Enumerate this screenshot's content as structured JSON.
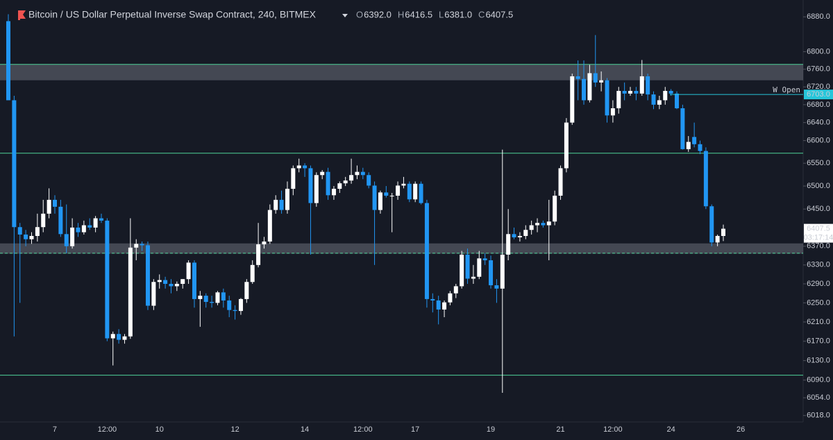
{
  "header": {
    "symbol": "Bitcoin / US Dollar Perpetual Inverse Swap Contract, 240, BITMEX",
    "ohlc": [
      {
        "key": "O",
        "value": "6392.0"
      },
      {
        "key": "H",
        "value": "6416.5"
      },
      {
        "key": "L",
        "value": "6381.0"
      },
      {
        "key": "C",
        "value": "6407.5"
      }
    ]
  },
  "chart_data": {
    "type": "candlestick",
    "log_scale": true,
    "ylim": [
      6005,
      6919
    ],
    "yticks": [
      {
        "value": 6880,
        "label": "6880.0"
      },
      {
        "value": 6800,
        "label": "6800.0"
      },
      {
        "value": 6760,
        "label": "6760.0"
      },
      {
        "value": 6720,
        "label": "6720.0"
      },
      {
        "value": 6680,
        "label": "6680.0"
      },
      {
        "value": 6640,
        "label": "6640.0"
      },
      {
        "value": 6600,
        "label": "6600.0"
      },
      {
        "value": 6550,
        "label": "6550.0"
      },
      {
        "value": 6500,
        "label": "6500.0"
      },
      {
        "value": 6450,
        "label": "6450.0"
      },
      {
        "value": 6370,
        "label": "6370.0"
      },
      {
        "value": 6330,
        "label": "6330.0"
      },
      {
        "value": 6290,
        "label": "6290.0"
      },
      {
        "value": 6250,
        "label": "6250.0"
      },
      {
        "value": 6210,
        "label": "6210.0"
      },
      {
        "value": 6170,
        "label": "6170.0"
      },
      {
        "value": 6130,
        "label": "6130.0"
      },
      {
        "value": 6090,
        "label": "6090.0"
      },
      {
        "value": 6054,
        "label": "6054.0"
      },
      {
        "value": 6018,
        "label": "6018.0"
      }
    ],
    "up_color": "#ffffff",
    "down_color": "#2196f3",
    "categories": [
      null,
      null,
      null,
      null,
      null,
      null,
      null,
      null,
      "7",
      null,
      null,
      null,
      null,
      null,
      null,
      null,
      null,
      "12:00",
      null,
      null,
      null,
      null,
      null,
      null,
      null,
      null,
      "10",
      null,
      null,
      null,
      null,
      null,
      null,
      null,
      null,
      null,
      null,
      null,
      null,
      "12",
      null,
      null,
      null,
      null,
      null,
      null,
      null,
      null,
      null,
      null,
      null,
      "14",
      null,
      null,
      null,
      null,
      null,
      null,
      null,
      null,
      null,
      "12:00",
      null,
      null,
      null,
      null,
      null,
      null,
      null,
      null,
      "17",
      null,
      null,
      null,
      null,
      null,
      null,
      null,
      null,
      null,
      null,
      null,
      null,
      "19",
      null,
      null,
      null,
      null,
      null,
      null,
      null,
      null,
      null,
      null,
      null,
      "21",
      null,
      null,
      null,
      null,
      null,
      null,
      null,
      null,
      "12:00",
      null,
      null,
      null,
      null,
      null,
      null,
      null,
      null,
      null,
      "24",
      null,
      null,
      null,
      null,
      null,
      null,
      null,
      null,
      null,
      null,
      null,
      "26"
    ],
    "ohlc": [
      [
        6870,
        6886,
        6690,
        6690
      ],
      [
        6690,
        6700,
        6180,
        6411
      ],
      [
        6411,
        6420,
        6250,
        6395
      ],
      [
        6395,
        6405,
        6370,
        6385
      ],
      [
        6385,
        6400,
        6375,
        6392
      ],
      [
        6392,
        6440,
        6380,
        6411
      ],
      [
        6411,
        6470,
        6400,
        6440
      ],
      [
        6440,
        6495,
        6430,
        6470
      ],
      [
        6470,
        6480,
        6440,
        6455
      ],
      [
        6455,
        6470,
        6390,
        6396
      ],
      [
        6396,
        6460,
        6355,
        6370
      ],
      [
        6370,
        6430,
        6365,
        6410
      ],
      [
        6410,
        6420,
        6390,
        6400
      ],
      [
        6400,
        6425,
        6395,
        6415
      ],
      [
        6415,
        6430,
        6405,
        6410
      ],
      [
        6410,
        6435,
        6400,
        6430
      ],
      [
        6430,
        6440,
        6420,
        6425
      ],
      [
        6425,
        6430,
        6170,
        6176
      ],
      [
        6176,
        6190,
        6120,
        6185
      ],
      [
        6185,
        6195,
        6165,
        6173
      ],
      [
        6173,
        6185,
        6165,
        6180
      ],
      [
        6180,
        6430,
        6175,
        6367
      ],
      [
        6367,
        6385,
        6340,
        6375
      ],
      [
        6375,
        6380,
        6360,
        6372
      ],
      [
        6372,
        6380,
        6235,
        6244
      ],
      [
        6244,
        6300,
        6235,
        6294
      ],
      [
        6294,
        6310,
        6280,
        6298
      ],
      [
        6298,
        6305,
        6280,
        6290
      ],
      [
        6290,
        6300,
        6270,
        6285
      ],
      [
        6285,
        6295,
        6275,
        6290
      ],
      [
        6290,
        6300,
        6280,
        6300
      ],
      [
        6300,
        6340,
        6290,
        6335
      ],
      [
        6335,
        6340,
        6240,
        6258
      ],
      [
        6258,
        6275,
        6200,
        6265
      ],
      [
        6265,
        6270,
        6240,
        6252
      ],
      [
        6252,
        6265,
        6240,
        6250
      ],
      [
        6250,
        6275,
        6245,
        6272
      ],
      [
        6272,
        6280,
        6240,
        6255
      ],
      [
        6255,
        6265,
        6220,
        6235
      ],
      [
        6235,
        6245,
        6215,
        6233
      ],
      [
        6233,
        6260,
        6225,
        6258
      ],
      [
        6258,
        6300,
        6250,
        6294
      ],
      [
        6294,
        6340,
        6290,
        6330
      ],
      [
        6330,
        6420,
        6325,
        6374
      ],
      [
        6374,
        6390,
        6365,
        6380
      ],
      [
        6380,
        6460,
        6375,
        6448
      ],
      [
        6448,
        6480,
        6440,
        6470
      ],
      [
        6470,
        6490,
        6440,
        6448
      ],
      [
        6448,
        6510,
        6440,
        6494
      ],
      [
        6494,
        6545,
        6480,
        6539
      ],
      [
        6539,
        6560,
        6530,
        6545
      ],
      [
        6545,
        6550,
        6520,
        6539
      ],
      [
        6539,
        6545,
        6352,
        6463
      ],
      [
        6463,
        6530,
        6455,
        6524
      ],
      [
        6524,
        6535,
        6515,
        6531
      ],
      [
        6531,
        6540,
        6470,
        6480
      ],
      [
        6480,
        6500,
        6470,
        6494
      ],
      [
        6494,
        6510,
        6485,
        6506
      ],
      [
        6506,
        6520,
        6500,
        6512
      ],
      [
        6512,
        6560,
        6505,
        6524
      ],
      [
        6524,
        6545,
        6515,
        6531
      ],
      [
        6531,
        6540,
        6515,
        6524
      ],
      [
        6524,
        6530,
        6495,
        6501
      ],
      [
        6501,
        6510,
        6330,
        6448
      ],
      [
        6448,
        6490,
        6440,
        6486
      ],
      [
        6486,
        6500,
        6475,
        6479
      ],
      [
        6479,
        6485,
        6400,
        6479
      ],
      [
        6479,
        6510,
        6470,
        6501
      ],
      [
        6501,
        6520,
        6495,
        6505
      ],
      [
        6505,
        6510,
        6465,
        6471
      ],
      [
        6471,
        6510,
        6465,
        6505
      ],
      [
        6505,
        6510,
        6460,
        6463
      ],
      [
        6463,
        6470,
        6240,
        6258
      ],
      [
        6258,
        6270,
        6230,
        6255
      ],
      [
        6255,
        6265,
        6205,
        6236
      ],
      [
        6236,
        6255,
        6220,
        6251
      ],
      [
        6251,
        6275,
        6245,
        6270
      ],
      [
        6270,
        6290,
        6260,
        6285
      ],
      [
        6285,
        6360,
        6280,
        6352
      ],
      [
        6352,
        6365,
        6290,
        6301
      ],
      [
        6301,
        6330,
        6290,
        6305
      ],
      [
        6305,
        6360,
        6300,
        6344
      ],
      [
        6344,
        6355,
        6330,
        6340
      ],
      [
        6340,
        6350,
        6280,
        6287
      ],
      [
        6287,
        6300,
        6250,
        6280
      ],
      [
        6280,
        6580,
        6064,
        6352
      ],
      [
        6352,
        6450,
        6340,
        6396
      ],
      [
        6396,
        6410,
        6385,
        6389
      ],
      [
        6389,
        6400,
        6380,
        6392
      ],
      [
        6392,
        6415,
        6385,
        6405
      ],
      [
        6405,
        6425,
        6395,
        6415
      ],
      [
        6415,
        6430,
        6400,
        6420
      ],
      [
        6420,
        6425,
        6410,
        6415
      ],
      [
        6415,
        6470,
        6340,
        6423
      ],
      [
        6423,
        6490,
        6415,
        6479
      ],
      [
        6479,
        6545,
        6470,
        6539
      ],
      [
        6539,
        6650,
        6530,
        6640
      ],
      [
        6640,
        6750,
        6635,
        6744
      ],
      [
        6744,
        6780,
        6690,
        6738
      ],
      [
        6738,
        6780,
        6680,
        6690
      ],
      [
        6690,
        6770,
        6685,
        6751
      ],
      [
        6751,
        6838,
        6720,
        6730
      ],
      [
        6730,
        6755,
        6710,
        6735
      ],
      [
        6735,
        6740,
        6640,
        6656
      ],
      [
        6656,
        6690,
        6640,
        6672
      ],
      [
        6672,
        6720,
        6660,
        6711
      ],
      [
        6711,
        6730,
        6690,
        6705
      ],
      [
        6705,
        6720,
        6700,
        6711
      ],
      [
        6711,
        6720,
        6690,
        6705
      ],
      [
        6705,
        6781,
        6700,
        6744
      ],
      [
        6744,
        6750,
        6690,
        6703
      ],
      [
        6703,
        6710,
        6670,
        6680
      ],
      [
        6680,
        6700,
        6670,
        6690
      ],
      [
        6690,
        6720,
        6680,
        6711
      ],
      [
        6711,
        6715,
        6700,
        6705
      ],
      [
        6705,
        6710,
        6670,
        6672
      ],
      [
        6672,
        6680,
        6580,
        6581
      ],
      [
        6581,
        6610,
        6575,
        6597
      ],
      [
        6608,
        6640,
        6585,
        6592
      ],
      [
        6592,
        6600,
        6570,
        6577
      ],
      [
        6577,
        6585,
        6450,
        6456
      ],
      [
        6456,
        6460,
        6370,
        6378
      ],
      [
        6378,
        6395,
        6370,
        6392
      ],
      [
        6392,
        6416.5,
        6381,
        6407.5
      ],
      null,
      null,
      null
    ],
    "levels": [
      6771,
      6572,
      6100
    ],
    "level_color": "#4fd39a",
    "zones": [
      [
        6735,
        6771
      ],
      [
        6354,
        6376
      ]
    ],
    "zone_color": "#6b6f7a",
    "dashed_level": 6355,
    "weekly_open": {
      "label": "W Open",
      "value": 6703,
      "value_label": "6703.0",
      "color": "#26c6da"
    },
    "last_price": {
      "value": 6407.5,
      "value_label": "6407.5",
      "countdown": "03:17:14"
    }
  }
}
